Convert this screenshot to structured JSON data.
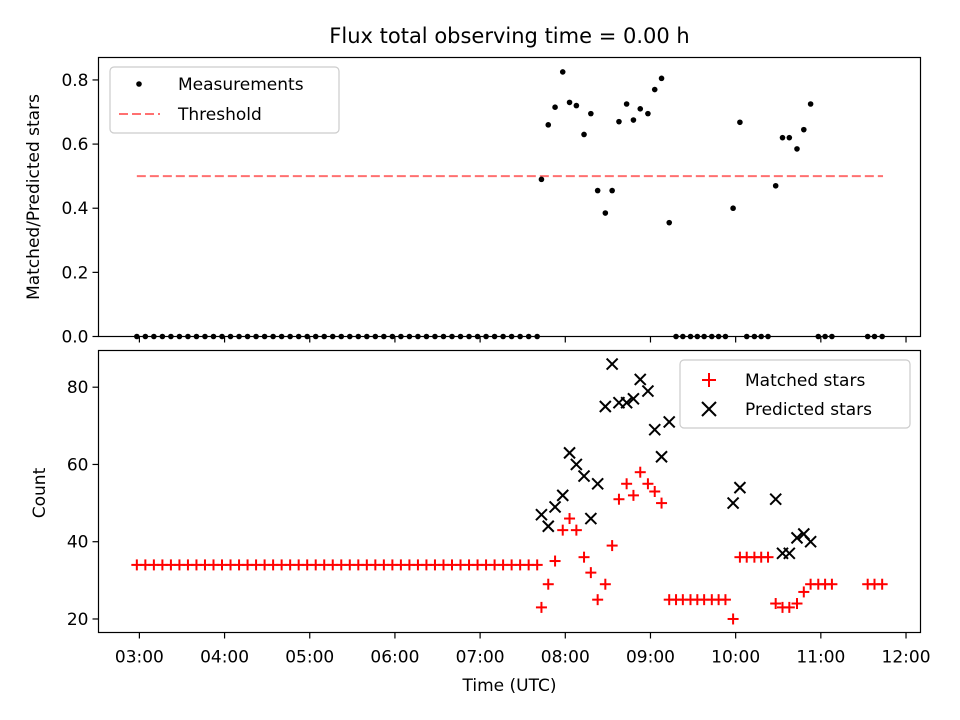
{
  "chart_data": [
    {
      "type": "scatter",
      "title": "Flux total observing time = 0.00 h",
      "xlabel": "",
      "ylabel": "Matched/Predicted stars",
      "xlim": [
        2.52,
        12.17
      ],
      "ylim": [
        0.0,
        0.87
      ],
      "yticks": [
        0.0,
        0.2,
        0.4,
        0.6,
        0.8
      ],
      "ytick_labels": [
        "0.0",
        "0.2",
        "0.4",
        "0.6",
        "0.8"
      ],
      "legend": {
        "position": "top-left",
        "entries": [
          "Measurements",
          "Threshold"
        ]
      },
      "threshold": {
        "name": "Threshold",
        "value": 0.5,
        "x_start": 2.97,
        "x_end": 11.73,
        "color": "#ff7070",
        "style": "dashed"
      },
      "series": [
        {
          "name": "Measurements",
          "color": "#000000",
          "marker": "dot",
          "x": [
            2.97,
            3.07,
            3.17,
            3.27,
            3.37,
            3.47,
            3.57,
            3.67,
            3.77,
            3.87,
            3.97,
            4.07,
            4.17,
            4.27,
            4.37,
            4.47,
            4.57,
            4.67,
            4.77,
            4.87,
            4.97,
            5.07,
            5.17,
            5.27,
            5.37,
            5.47,
            5.57,
            5.67,
            5.77,
            5.87,
            5.97,
            6.07,
            6.17,
            6.27,
            6.37,
            6.47,
            6.57,
            6.67,
            6.77,
            6.87,
            6.97,
            7.07,
            7.17,
            7.27,
            7.37,
            7.47,
            7.57,
            7.67,
            7.72,
            7.8,
            7.88,
            7.97,
            8.05,
            8.13,
            8.22,
            8.3,
            8.38,
            8.47,
            8.55,
            8.63,
            8.72,
            8.8,
            8.88,
            8.97,
            9.05,
            9.13,
            9.22,
            9.3,
            9.38,
            9.47,
            9.55,
            9.63,
            9.72,
            9.8,
            9.88,
            9.97,
            10.05,
            10.13,
            10.22,
            10.3,
            10.38,
            10.47,
            10.55,
            10.63,
            10.72,
            10.8,
            10.88,
            10.97,
            11.05,
            11.13,
            11.55,
            11.63,
            11.72
          ],
          "y": [
            0,
            0,
            0,
            0,
            0,
            0,
            0,
            0,
            0,
            0,
            0,
            0,
            0,
            0,
            0,
            0,
            0,
            0,
            0,
            0,
            0,
            0,
            0,
            0,
            0,
            0,
            0,
            0,
            0,
            0,
            0,
            0,
            0,
            0,
            0,
            0,
            0,
            0,
            0,
            0,
            0,
            0,
            0,
            0,
            0,
            0,
            0,
            0,
            0.49,
            0.66,
            0.715,
            0.825,
            0.73,
            0.72,
            0.63,
            0.695,
            0.455,
            0.385,
            0.455,
            0.67,
            0.725,
            0.675,
            0.71,
            0.695,
            0.77,
            0.805,
            0.355,
            0,
            0,
            0,
            0,
            0,
            0,
            0,
            0,
            0.4,
            0.668,
            0,
            0,
            0,
            0,
            0.47,
            0.62,
            0.62,
            0.585,
            0.645,
            0.725,
            0,
            0,
            0,
            0,
            0,
            0
          ]
        }
      ]
    },
    {
      "type": "scatter",
      "title": "",
      "xlabel": "Time (UTC)",
      "ylabel": "Count",
      "xlim": [
        2.52,
        12.17
      ],
      "ylim": [
        16.5,
        89.5
      ],
      "yticks": [
        20,
        40,
        60,
        80
      ],
      "ytick_labels": [
        "20",
        "40",
        "60",
        "80"
      ],
      "xticks": [
        3,
        4,
        5,
        6,
        7,
        8,
        9,
        10,
        11,
        12
      ],
      "xtick_labels": [
        "03:00",
        "04:00",
        "05:00",
        "06:00",
        "07:00",
        "08:00",
        "09:00",
        "10:00",
        "11:00",
        "12:00"
      ],
      "legend": {
        "position": "top-right",
        "entries": [
          "Matched stars",
          "Predicted stars"
        ]
      },
      "series": [
        {
          "name": "Matched stars",
          "color": "#ff0000",
          "marker": "plus",
          "x": [
            2.97,
            3.07,
            3.17,
            3.27,
            3.37,
            3.47,
            3.57,
            3.67,
            3.77,
            3.87,
            3.97,
            4.07,
            4.17,
            4.27,
            4.37,
            4.47,
            4.57,
            4.67,
            4.77,
            4.87,
            4.97,
            5.07,
            5.17,
            5.27,
            5.37,
            5.47,
            5.57,
            5.67,
            5.77,
            5.87,
            5.97,
            6.07,
            6.17,
            6.27,
            6.37,
            6.47,
            6.57,
            6.67,
            6.77,
            6.87,
            6.97,
            7.07,
            7.17,
            7.27,
            7.37,
            7.47,
            7.57,
            7.67,
            7.72,
            7.8,
            7.88,
            7.97,
            8.05,
            8.13,
            8.22,
            8.3,
            8.38,
            8.47,
            8.55,
            8.63,
            8.72,
            8.8,
            8.88,
            8.97,
            9.05,
            9.13,
            9.22,
            9.3,
            9.38,
            9.47,
            9.55,
            9.63,
            9.72,
            9.8,
            9.88,
            9.97,
            10.05,
            10.13,
            10.22,
            10.3,
            10.38,
            10.47,
            10.55,
            10.63,
            10.72,
            10.8,
            10.88,
            10.97,
            11.05,
            11.13,
            11.55,
            11.63,
            11.72
          ],
          "y": [
            34,
            34,
            34,
            34,
            34,
            34,
            34,
            34,
            34,
            34,
            34,
            34,
            34,
            34,
            34,
            34,
            34,
            34,
            34,
            34,
            34,
            34,
            34,
            34,
            34,
            34,
            34,
            34,
            34,
            34,
            34,
            34,
            34,
            34,
            34,
            34,
            34,
            34,
            34,
            34,
            34,
            34,
            34,
            34,
            34,
            34,
            34,
            34,
            23,
            29,
            35,
            43,
            46,
            43,
            36,
            32,
            25,
            29,
            39,
            51,
            55,
            52,
            58,
            55,
            53,
            50,
            25,
            25,
            25,
            25,
            25,
            25,
            25,
            25,
            25,
            20,
            36,
            36,
            36,
            36,
            36,
            24,
            23,
            23,
            24,
            27,
            29,
            29,
            29,
            29,
            29,
            29,
            29
          ]
        },
        {
          "name": "Predicted stars",
          "color": "#000000",
          "marker": "x",
          "x": [
            7.72,
            7.8,
            7.88,
            7.97,
            8.05,
            8.13,
            8.22,
            8.3,
            8.38,
            8.47,
            8.55,
            8.63,
            8.72,
            8.8,
            8.88,
            8.97,
            9.05,
            9.13,
            9.22,
            9.97,
            10.05,
            10.47,
            10.55,
            10.63,
            10.72,
            10.8,
            10.88
          ],
          "y": [
            47,
            44,
            49,
            52,
            63,
            60,
            57,
            46,
            55,
            75,
            86,
            76,
            76,
            77,
            82,
            79,
            69,
            62,
            71,
            50,
            54,
            51,
            37,
            37,
            41,
            42,
            40
          ]
        }
      ]
    }
  ]
}
